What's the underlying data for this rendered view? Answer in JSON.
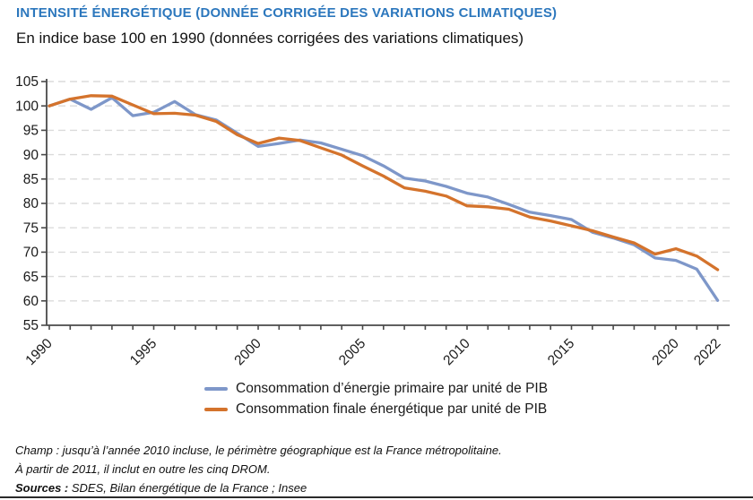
{
  "header": {
    "title": "INTENSITÉ ÉNERGÉTIQUE (DONNÉE CORRIGÉE DES VARIATIONS CLIMATIQUES)",
    "subtitle": "En indice base 100 en 1990 (données corrigées des variations climatiques)"
  },
  "chart_data": {
    "type": "line",
    "title": "Intensité énergétique, indice base 100 en 1990",
    "x": [
      1990,
      1991,
      1992,
      1993,
      1994,
      1995,
      1996,
      1997,
      1998,
      1999,
      2000,
      2001,
      2002,
      2003,
      2004,
      2005,
      2006,
      2007,
      2008,
      2009,
      2010,
      2011,
      2012,
      2013,
      2014,
      2015,
      2016,
      2017,
      2018,
      2019,
      2020,
      2021,
      2022
    ],
    "series": [
      {
        "name": "Consommation d’énergie primaire par unité de PIB",
        "color": "#7e97c9",
        "values": [
          100,
          101.4,
          99.3,
          101.7,
          98,
          98.7,
          100.9,
          98.2,
          97.1,
          94.4,
          91.7,
          92.3,
          93,
          92.4,
          91.1,
          89.8,
          87.7,
          85.2,
          84.6,
          83.5,
          82.1,
          81.3,
          79.8,
          78.2,
          77.5,
          76.7,
          74.1,
          72.9,
          71.5,
          68.8,
          68.3,
          66.5,
          60.1
        ]
      },
      {
        "name": "Consommation finale énergétique par unité de PIB",
        "color": "#d4732c",
        "values": [
          100,
          101.4,
          102.1,
          102,
          100.2,
          98.4,
          98.5,
          98.1,
          96.8,
          94.1,
          92.3,
          93.4,
          92.9,
          91.4,
          89.9,
          87.7,
          85.6,
          83.2,
          82.5,
          81.5,
          79.5,
          79.3,
          78.8,
          77.2,
          76.4,
          75.4,
          74.4,
          73.1,
          71.9,
          69.6,
          70.7,
          69.2,
          66.4
        ]
      }
    ],
    "ylim": [
      55,
      105
    ],
    "ytick_step": 5,
    "ytick_labels": [
      "55",
      "60",
      "65",
      "70",
      "75",
      "80",
      "85",
      "90",
      "95",
      "100",
      "105"
    ],
    "xtick_labeled_years": [
      1990,
      1995,
      2000,
      2005,
      2010,
      2015,
      2020,
      2022
    ],
    "xtick_labels": [
      "1990",
      "1995",
      "2000",
      "2005",
      "2010",
      "2015",
      "2020",
      "2022"
    ],
    "grid": "horizontal-dashed",
    "legend_position": "bottom",
    "xlabel": "",
    "ylabel": ""
  },
  "style": {
    "grid_color": "#dbdbdb",
    "axis_color": "#4a4a4a",
    "tick_text_color": "#1a1a1a"
  },
  "footer": {
    "champ_line1": "Champ : jusqu’à l’année 2010 incluse, le périmètre géographique est la France métropolitaine.",
    "champ_line2": "À partir de 2011, il inclut en outre les cinq DROM.",
    "sources_label": "Sources :",
    "sources_text": " SDES, Bilan énergétique de la France ; Insee"
  }
}
